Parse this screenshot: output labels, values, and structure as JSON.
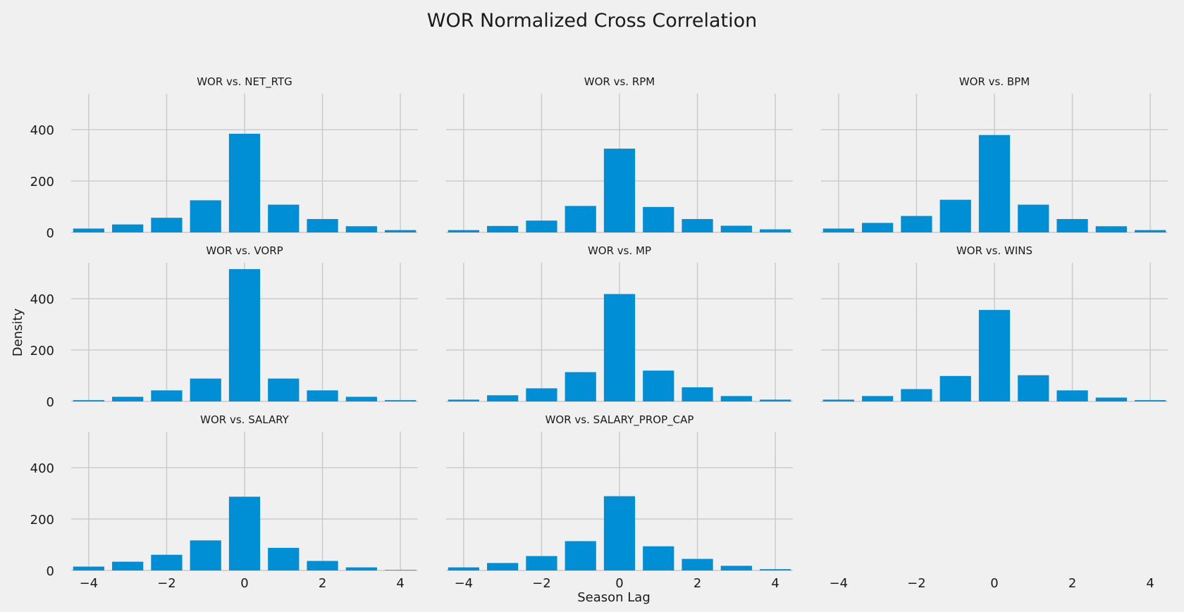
{
  "chart_data": {
    "type": "bar",
    "title": "WOR Normalized Cross Correlation",
    "xlabel": "Season Lag",
    "ylabel": "Density",
    "x": [
      -4,
      -3,
      -2,
      -1,
      0,
      1,
      2,
      3,
      4
    ],
    "xlim": [
      -4.45,
      4.45
    ],
    "ylim": [
      0,
      540
    ],
    "xticks": [
      -4,
      -2,
      0,
      2,
      4
    ],
    "xtick_labels": [
      "−4",
      "−2",
      "0",
      "2",
      "4"
    ],
    "yticks": [
      0,
      200,
      400
    ],
    "ytick_labels": [
      "0",
      "200",
      "400"
    ],
    "grid": true,
    "bar_color": "#008fd5",
    "background_color": "#f0f0f0",
    "grid_color": "#cbcbcb",
    "subplots": [
      {
        "title": "WOR vs. NET_RTG",
        "values": [
          15,
          31,
          57,
          125,
          384,
          108,
          52,
          24,
          9
        ]
      },
      {
        "title": "WOR vs. RPM",
        "values": [
          9,
          25,
          46,
          103,
          326,
          99,
          52,
          26,
          12
        ]
      },
      {
        "title": "WOR vs. BPM",
        "values": [
          15,
          37,
          64,
          127,
          379,
          108,
          52,
          24,
          9
        ]
      },
      {
        "title": "WOR vs. VORP",
        "values": [
          5,
          18,
          43,
          89,
          515,
          89,
          43,
          18,
          5
        ]
      },
      {
        "title": "WOR vs. MP",
        "values": [
          7,
          24,
          51,
          114,
          418,
          120,
          55,
          21,
          7
        ]
      },
      {
        "title": "WOR vs. WINS",
        "values": [
          7,
          21,
          48,
          99,
          356,
          102,
          43,
          15,
          5
        ]
      },
      {
        "title": "WOR vs. SALARY",
        "values": [
          15,
          34,
          61,
          117,
          287,
          88,
          37,
          12,
          2
        ]
      },
      {
        "title": "WOR vs. SALARY_PROP_CAP",
        "values": [
          12,
          29,
          56,
          114,
          289,
          94,
          45,
          18,
          5
        ]
      }
    ]
  }
}
